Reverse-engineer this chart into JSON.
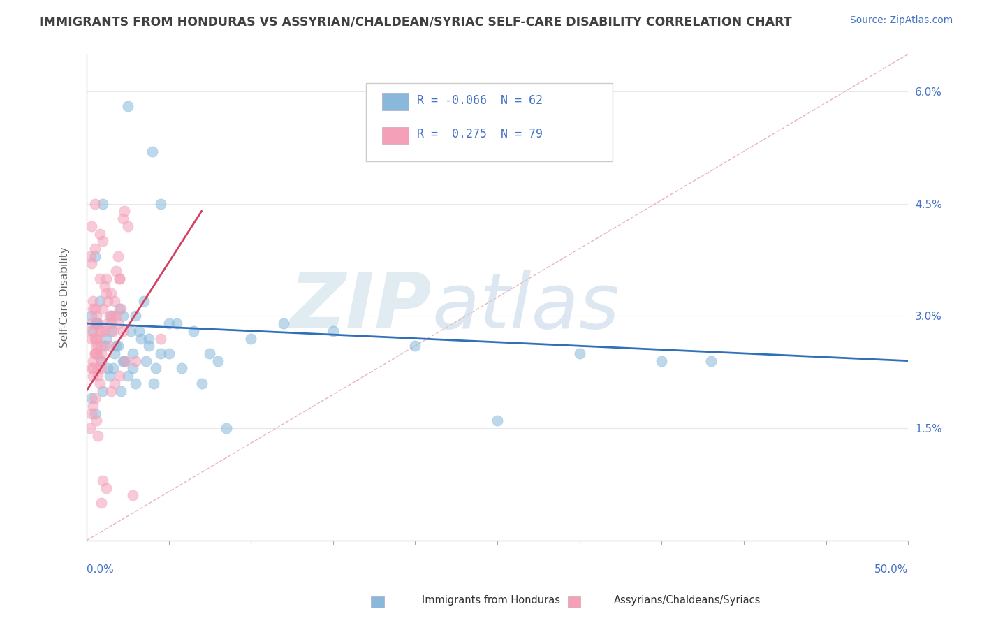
{
  "title": "IMMIGRANTS FROM HONDURAS VS ASSYRIAN/CHALDEAN/SYRIAC SELF-CARE DISABILITY CORRELATION CHART",
  "source": "Source: ZipAtlas.com",
  "ylabel": "Self-Care Disability",
  "y_ticks": [
    0.0,
    1.5,
    3.0,
    4.5,
    6.0
  ],
  "y_tick_labels": [
    "",
    "1.5%",
    "3.0%",
    "4.5%",
    "6.0%"
  ],
  "x_range": [
    0,
    50
  ],
  "y_range": [
    0,
    6.5
  ],
  "blue_R": "-0.066",
  "blue_N": "62",
  "pink_R": "0.275",
  "pink_N": "79",
  "blue_scatter_x": [
    2.5,
    4.0,
    1.0,
    0.5,
    0.3,
    0.8,
    1.5,
    2.0,
    3.0,
    1.2,
    0.6,
    1.8,
    2.8,
    4.5,
    3.5,
    5.5,
    0.4,
    1.1,
    2.2,
    3.8,
    1.7,
    0.9,
    1.3,
    2.5,
    3.2,
    4.2,
    5.0,
    6.5,
    8.0,
    10.0,
    12.0,
    15.0,
    20.0,
    25.0,
    30.0,
    35.0,
    3.0,
    2.1,
    1.6,
    0.7,
    1.9,
    2.7,
    3.3,
    4.5,
    5.8,
    7.0,
    8.5,
    2.3,
    1.4,
    0.5,
    0.3,
    1.0,
    2.8,
    3.6,
    4.1,
    38.0,
    1.5,
    5.0,
    7.5,
    0.6,
    2.2,
    3.8
  ],
  "blue_scatter_y": [
    5.8,
    5.2,
    4.5,
    3.8,
    3.0,
    3.2,
    2.8,
    3.1,
    3.0,
    2.7,
    2.9,
    2.6,
    2.5,
    4.5,
    3.2,
    2.9,
    2.8,
    2.6,
    2.4,
    2.6,
    2.5,
    2.4,
    2.3,
    2.2,
    2.8,
    2.3,
    2.5,
    2.8,
    2.4,
    2.7,
    2.9,
    2.8,
    2.6,
    1.6,
    2.5,
    2.4,
    2.1,
    2.0,
    2.3,
    2.9,
    2.6,
    2.8,
    2.7,
    2.5,
    2.3,
    2.1,
    1.5,
    2.4,
    2.2,
    1.7,
    1.9,
    2.0,
    2.3,
    2.4,
    2.1,
    2.4,
    3.0,
    2.9,
    2.5,
    2.9,
    3.0,
    2.7
  ],
  "pink_scatter_x": [
    0.2,
    0.3,
    0.5,
    0.8,
    1.0,
    0.4,
    0.6,
    1.2,
    0.9,
    1.5,
    2.0,
    0.7,
    1.8,
    0.3,
    0.5,
    0.8,
    1.1,
    0.4,
    0.6,
    1.3,
    0.9,
    1.6,
    2.2,
    0.7,
    1.9,
    0.3,
    0.5,
    0.8,
    1.2,
    0.4,
    0.6,
    1.4,
    0.9,
    1.7,
    2.3,
    0.7,
    2.0,
    0.3,
    0.5,
    1.0,
    1.3,
    0.4,
    0.6,
    1.5,
    0.9,
    1.8,
    2.5,
    0.7,
    2.1,
    0.3,
    0.5,
    1.1,
    1.4,
    0.4,
    0.6,
    1.6,
    0.9,
    1.9,
    2.8,
    0.7,
    2.2,
    3.0,
    4.5,
    0.5,
    0.3,
    1.2,
    1.0,
    2.0,
    0.8,
    1.5,
    0.5,
    0.4,
    0.3,
    2.4,
    1.7,
    0.6,
    0.2,
    0.7,
    0.9
  ],
  "pink_scatter_y": [
    3.8,
    4.2,
    4.5,
    3.5,
    4.0,
    3.2,
    3.0,
    3.5,
    2.8,
    3.3,
    3.5,
    2.9,
    3.6,
    3.7,
    3.9,
    4.1,
    3.4,
    3.1,
    2.7,
    3.2,
    2.5,
    3.0,
    4.3,
    2.6,
    3.8,
    2.9,
    3.1,
    2.8,
    3.3,
    2.4,
    2.7,
    3.0,
    2.6,
    3.2,
    4.4,
    2.5,
    3.5,
    2.8,
    2.7,
    3.1,
    2.9,
    2.3,
    2.6,
    2.9,
    2.4,
    3.0,
    4.2,
    2.3,
    3.1,
    2.7,
    2.5,
    2.8,
    2.6,
    2.2,
    2.5,
    2.8,
    2.3,
    2.9,
    0.6,
    2.2,
    2.8,
    2.4,
    2.7,
    2.5,
    2.3,
    0.7,
    0.8,
    2.2,
    2.1,
    2.0,
    1.9,
    1.8,
    1.7,
    2.4,
    2.1,
    1.6,
    1.5,
    1.4,
    0.5
  ],
  "blue_line": {
    "x0": 0,
    "x1": 50,
    "y0": 2.9,
    "y1": 2.4
  },
  "pink_line": {
    "x0": 0,
    "x1": 7.0,
    "y0": 2.0,
    "y1": 4.4
  },
  "ref_line_color": "#e8b4b8",
  "blue_color": "#89b8db",
  "pink_color": "#f4a0b8",
  "blue_line_color": "#3070b8",
  "pink_line_color": "#d44060",
  "background_color": "#ffffff",
  "title_color": "#404040",
  "source_color": "#4472c4",
  "axis_color": "#4472c4",
  "label_color": "#666666",
  "title_fontsize": 12.5,
  "source_fontsize": 10,
  "axis_label_fontsize": 11,
  "tick_fontsize": 11,
  "legend_r_color": "#4472c4",
  "grid_color": "#e8e8e8"
}
